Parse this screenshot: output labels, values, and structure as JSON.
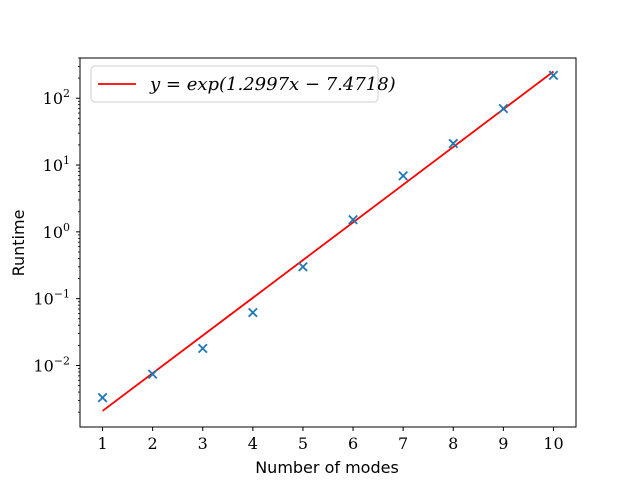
{
  "chart_data": {
    "type": "scatter",
    "xlabel": "Number of modes",
    "ylabel": "Runtime",
    "y_scale": "log",
    "xlim": [
      0.55,
      10.45
    ],
    "ylim": [
      0.0012,
      400
    ],
    "x_ticks": [
      1,
      2,
      3,
      4,
      5,
      6,
      7,
      8,
      9,
      10
    ],
    "y_ticks": [
      {
        "value": 0.01,
        "base": "10",
        "exp": "−2"
      },
      {
        "value": 0.1,
        "base": "10",
        "exp": "−1"
      },
      {
        "value": 1,
        "base": "10",
        "exp": "0"
      },
      {
        "value": 10,
        "base": "10",
        "exp": "1"
      },
      {
        "value": 100,
        "base": "10",
        "exp": "2"
      }
    ],
    "grid": false,
    "legend": {
      "placement": "top-left",
      "label": "y = exp(1.2997x − 7.4718)"
    },
    "series": [
      {
        "marker": "x",
        "color": "#1f77b4",
        "x": [
          1,
          2,
          3,
          4,
          5,
          6,
          7,
          8,
          9,
          10
        ],
        "y": [
          0.0033,
          0.0074,
          0.018,
          0.062,
          0.3,
          1.52,
          6.9,
          21.0,
          70.0,
          220.0
        ]
      },
      {
        "name": "y = exp(1.2997x − 7.4718)",
        "type": "line",
        "color": "#ff0000",
        "fit": {
          "a": 1.2997,
          "b": -7.4718
        },
        "x": [
          1,
          10
        ]
      }
    ]
  }
}
